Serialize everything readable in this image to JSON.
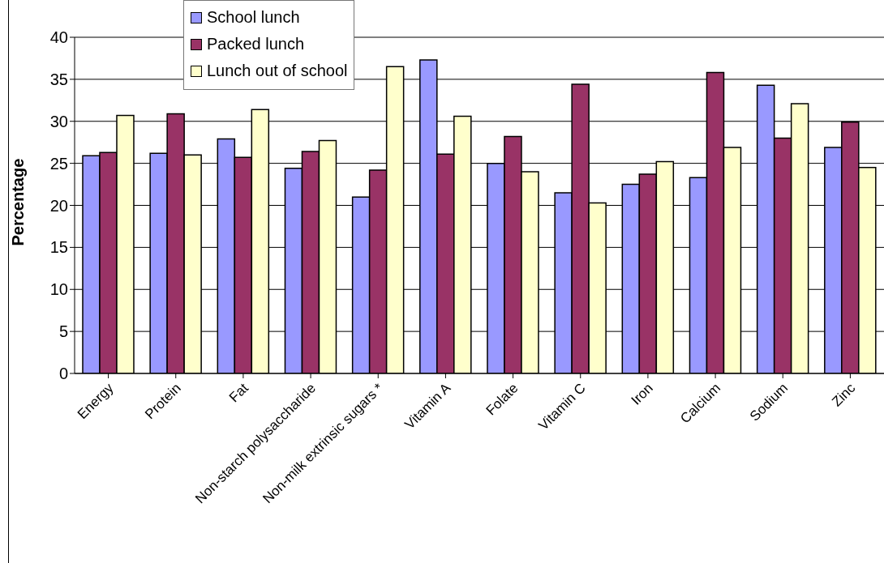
{
  "chart_data": {
    "type": "bar",
    "ylabel": "Percentage",
    "categories": [
      "Energy",
      "Protein",
      "Fat",
      "Non-starch polysaccharide",
      "Non-milk extrinsic sugars *",
      "Vitamin A",
      "Folate",
      "Vitamin C",
      "Iron",
      "Calcium",
      "Sodium",
      "Zinc"
    ],
    "series": [
      {
        "name": "School lunch",
        "color": "#9999ff",
        "values": [
          25.9,
          26.2,
          27.9,
          24.4,
          21.0,
          37.3,
          25.0,
          21.5,
          22.5,
          23.3,
          34.3,
          26.9
        ]
      },
      {
        "name": "Packed lunch",
        "color": "#993366",
        "values": [
          26.3,
          30.9,
          25.7,
          26.4,
          24.2,
          26.1,
          28.2,
          34.4,
          23.7,
          35.8,
          28.0,
          29.9
        ]
      },
      {
        "name": "Lunch out of school",
        "color": "#ffffcc",
        "values": [
          30.7,
          26.0,
          31.4,
          27.7,
          36.5,
          30.6,
          24.0,
          20.3,
          25.2,
          26.9,
          32.1,
          24.5
        ]
      }
    ],
    "ylim": [
      0,
      40
    ],
    "yticks": [
      0,
      5,
      10,
      15,
      20,
      25,
      30,
      35,
      40
    ],
    "grid": "y",
    "legend": "top left"
  }
}
